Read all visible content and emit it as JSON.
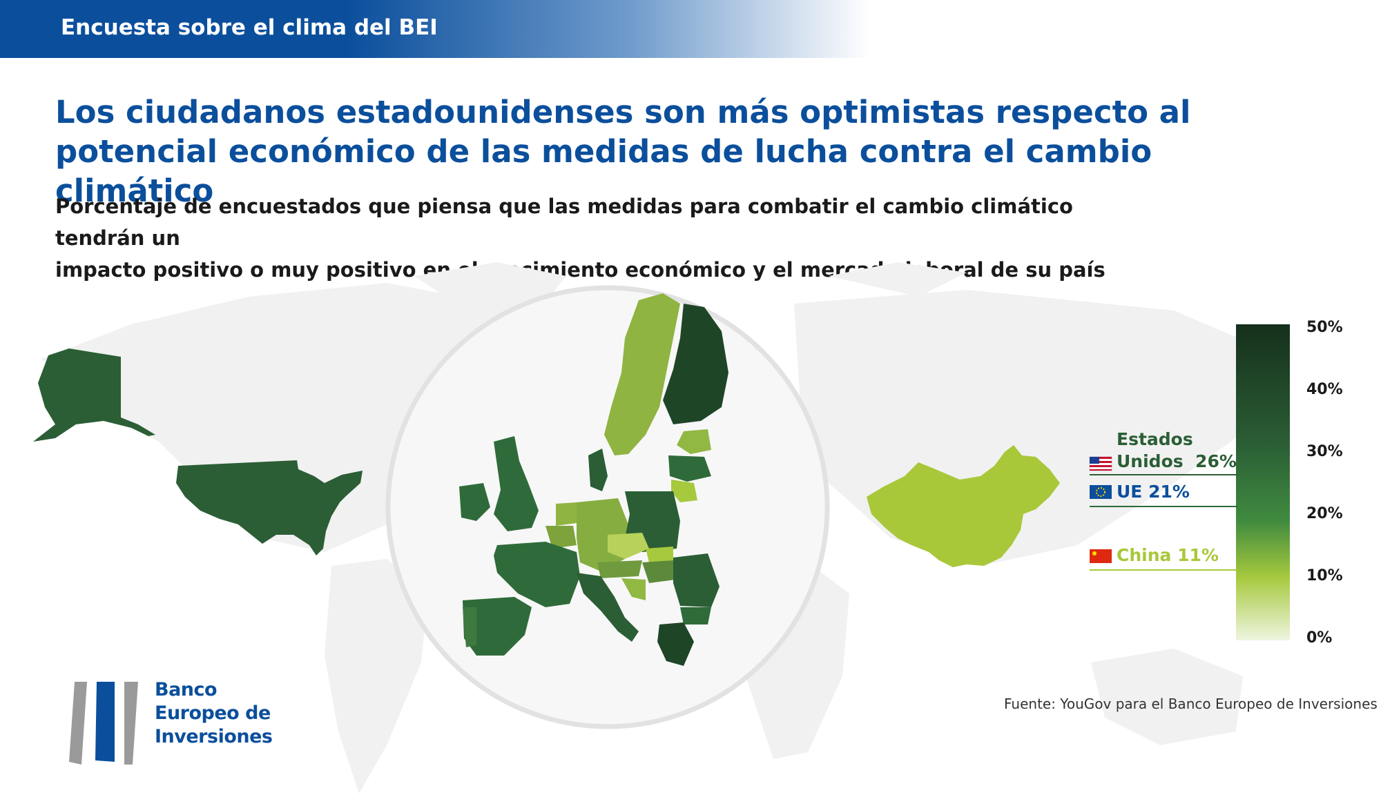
{
  "header": {
    "banner": "Encuesta sobre el clima del BEI"
  },
  "title": "Los ciudadanos estadounidenses son más optimistas respecto al potencial económico de las medidas de lucha contra el cambio climático",
  "subtitle_line1": "Porcentaje de encuestados que piensa que las medidas para combatir el cambio climático tendrán un",
  "subtitle_line2": "impacto positivo o muy positivo en el crecimiento económico y el mercado laboral de su país",
  "map_data": {
    "metric": "percent_positive_impact",
    "regions": [
      {
        "region": "United States",
        "value": 26
      },
      {
        "region": "European Union",
        "value": 21
      },
      {
        "region": "China",
        "value": 11
      }
    ],
    "color_scale": {
      "min": 0,
      "max": 50,
      "colors": [
        "#eaf3d8",
        "#a6c93e",
        "#2f6b3a",
        "#16301c"
      ]
    }
  },
  "legend": {
    "ticks": [
      "50%",
      "40%",
      "30%",
      "20%",
      "10%",
      "0%"
    ]
  },
  "callouts": {
    "us_line1": "Estados",
    "us_line2": "Unidos",
    "us_value": "26%",
    "eu_name": "UE",
    "eu_value": "21%",
    "cn_name": "China",
    "cn_value": "11%"
  },
  "colors": {
    "brand_blue": "#0b4f9c",
    "us_green": "#2b5e35",
    "eu_green": "#2f6b3a",
    "china_green": "#a8c83a"
  },
  "source": "Fuente: YouGov para el Banco Europeo de Inversiones",
  "logo": {
    "line1": "Banco",
    "line2": "Europeo de",
    "line3": "Inversiones"
  }
}
